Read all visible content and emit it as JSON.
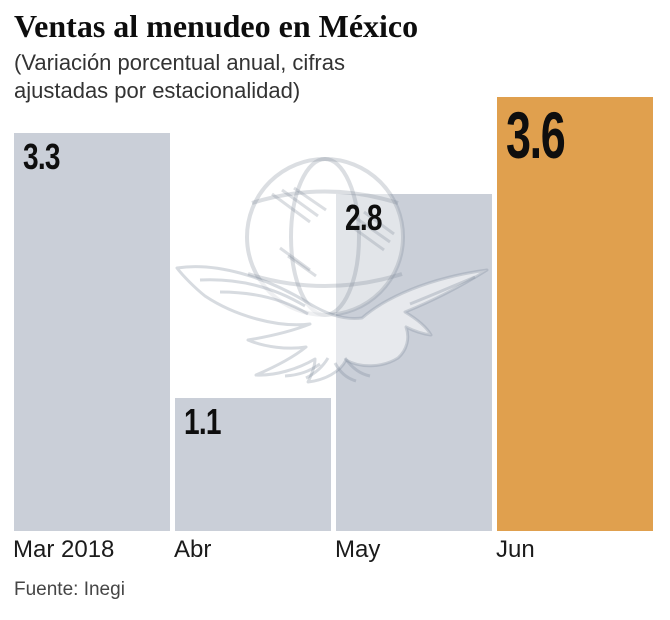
{
  "header": {
    "title": "Ventas al menudeo en México",
    "subtitle_lines": [
      "(Variación porcentual anual, cifras",
      "ajustadas por estacionalidad)"
    ]
  },
  "footer": {
    "source": "Fuente: Inegi"
  },
  "watermark": {
    "icon": "eagle-over-globe-newspaper-logo",
    "line_color_rgba": "rgba(124,137,151,0.30)",
    "fill_color_rgba": "rgba(255,255,255,0.55)"
  },
  "colors": {
    "background": "#ffffff",
    "bar": "#cacfd8",
    "highlight": "#e0a04e",
    "value_label": "#0e0e0e",
    "axis_label": "#1b1b1b",
    "subtitle": "#333333",
    "source": "#454545"
  },
  "chart_data": {
    "type": "bar",
    "title": "Ventas al menudeo en México",
    "subtitle": "(Variación porcentual anual, cifras ajustadas por estacionalidad)",
    "source": "Fuente: Inegi",
    "categories": [
      "Mar 2018",
      "Abr",
      "May",
      "Jun"
    ],
    "values": [
      3.3,
      1.1,
      2.8,
      3.6
    ],
    "value_labels": [
      "3.3",
      "1.1",
      "2.8",
      "3.6"
    ],
    "highlight_index": 3,
    "bar_color": "#cacfd8",
    "highlight_color": "#e0a04e",
    "ylim": [
      0,
      3.6
    ],
    "grid": false,
    "legend": "none",
    "value_label_position": "inside-top-left",
    "xlabel": "",
    "ylabel": ""
  }
}
